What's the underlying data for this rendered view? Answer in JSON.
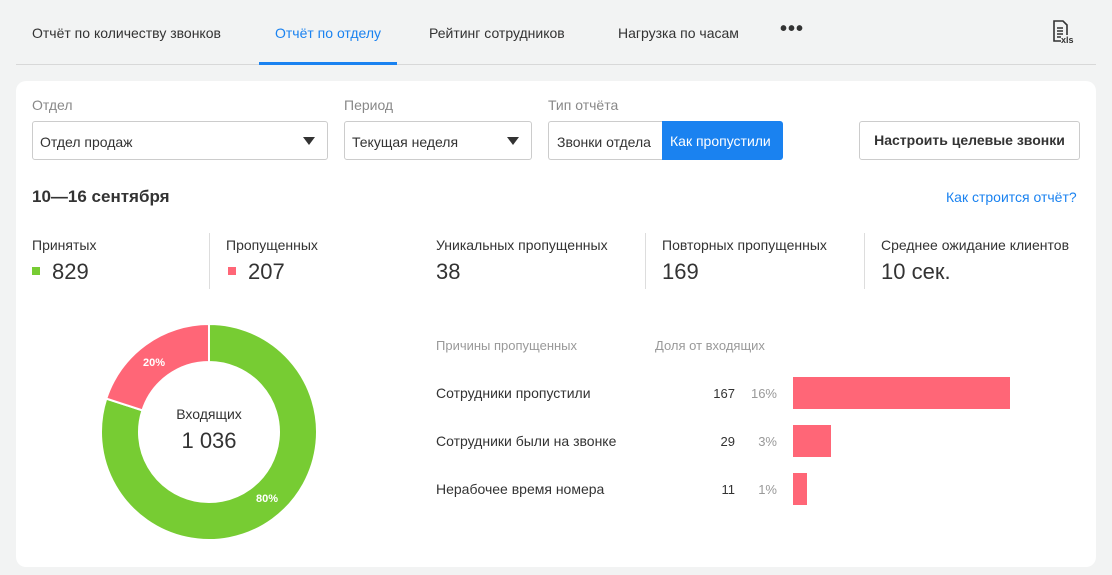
{
  "tabs": [
    {
      "label": "Отчёт по количеству звонков",
      "active": false
    },
    {
      "label": "Отчёт по отделу",
      "active": true
    },
    {
      "label": "Рейтинг сотрудников",
      "active": false
    },
    {
      "label": "Нагрузка по часам",
      "active": false
    }
  ],
  "more_icon": "more-horizontal-icon",
  "export_icon": "xls-file-icon",
  "export_label": "xls",
  "filters": {
    "department_label": "Отдел",
    "department_value": "Отдел продаж",
    "period_label": "Период",
    "period_value": "Текущая неделя",
    "type_label": "Тип отчёта",
    "type_options": [
      "Звонки отдела",
      "Как пропустили"
    ],
    "type_selected": "Как пропустили",
    "configure_button": "Настроить целевые звонки"
  },
  "date_range": "10—16 сентября",
  "help_link": "Как строится отчёт?",
  "stats": {
    "accepted_label": "Принятых",
    "accepted_value": "829",
    "missed_label": "Пропущенных",
    "missed_value": "207",
    "unique_label": "Уникальных пропущенных",
    "unique_value": "38",
    "repeat_label": "Повторных пропущенных",
    "repeat_value": "169",
    "wait_label": "Среднее ожидание клиентов",
    "wait_value": "10 сек."
  },
  "colors": {
    "accent": "#1a82f0",
    "accepted": "#77cc33",
    "missed": "#ff6677"
  },
  "donut": {
    "center_label": "Входящих",
    "center_value": "1 036",
    "accepted_pct": 80,
    "missed_pct": 20,
    "accepted_pct_label": "80%",
    "missed_pct_label": "20%"
  },
  "reasons": {
    "header_reason": "Причины пропущенных",
    "header_share": "Доля от входящих",
    "rows": [
      {
        "name": "Сотрудники пропустили",
        "count": "167",
        "pct": "16%",
        "value": 167
      },
      {
        "name": "Сотрудники были на звонке",
        "count": "29",
        "pct": "3%",
        "value": 29
      },
      {
        "name": "Нерабочее время номера",
        "count": "11",
        "pct": "1%",
        "value": 11
      }
    ]
  }
}
